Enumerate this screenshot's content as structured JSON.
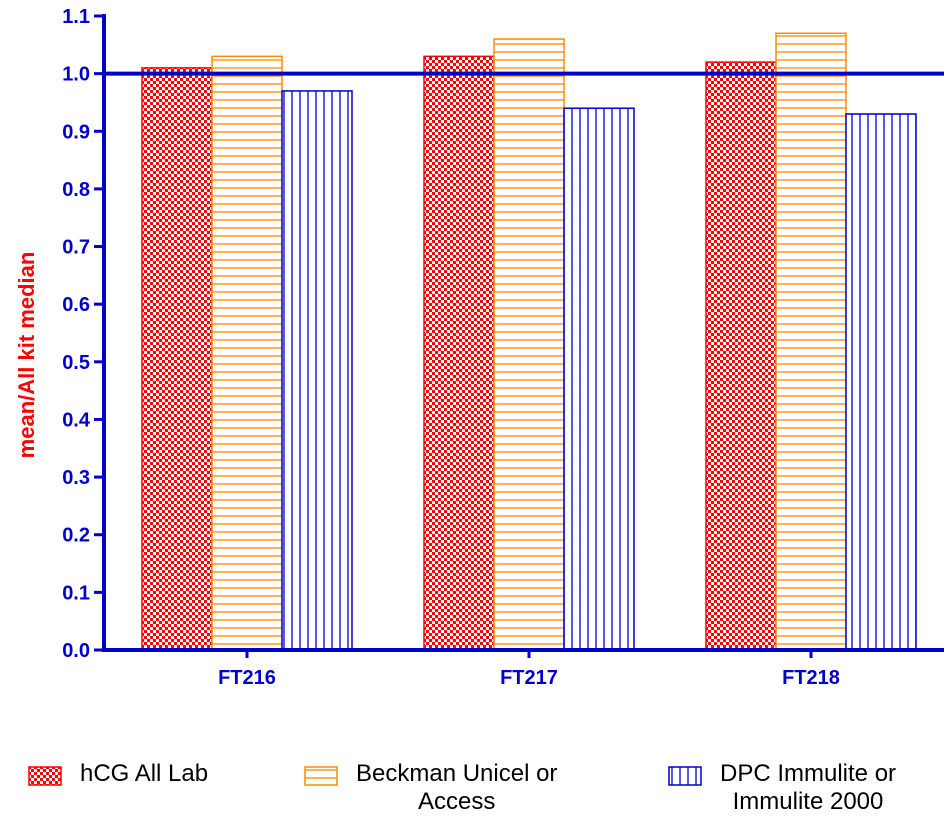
{
  "chart_data": {
    "type": "bar",
    "title": "",
    "xlabel": "",
    "ylabel": "mean/All kit median",
    "ylim": [
      0.0,
      1.1
    ],
    "yticks": [
      "0.0",
      "0.1",
      "0.2",
      "0.3",
      "0.4",
      "0.5",
      "0.6",
      "0.7",
      "0.8",
      "0.9",
      "1.0",
      "1.1"
    ],
    "categories": [
      "FT216",
      "FT217",
      "FT218"
    ],
    "reference_line": 1.0,
    "legend_position": "bottom",
    "series": [
      {
        "name": "hCG All Lab",
        "values": [
          1.01,
          1.03,
          1.02
        ],
        "color": "#ff0000",
        "pattern": "checker"
      },
      {
        "name": "Beckman Unicel or\nAccess",
        "values": [
          1.03,
          1.06,
          1.07
        ],
        "color": "#ff8c00",
        "pattern": "horizontal"
      },
      {
        "name": "DPC Immulite or\nImmulite 2000",
        "values": [
          0.97,
          0.94,
          0.93
        ],
        "color": "#0000cc",
        "pattern": "vertical"
      }
    ],
    "axis_color": "#0000cc"
  }
}
